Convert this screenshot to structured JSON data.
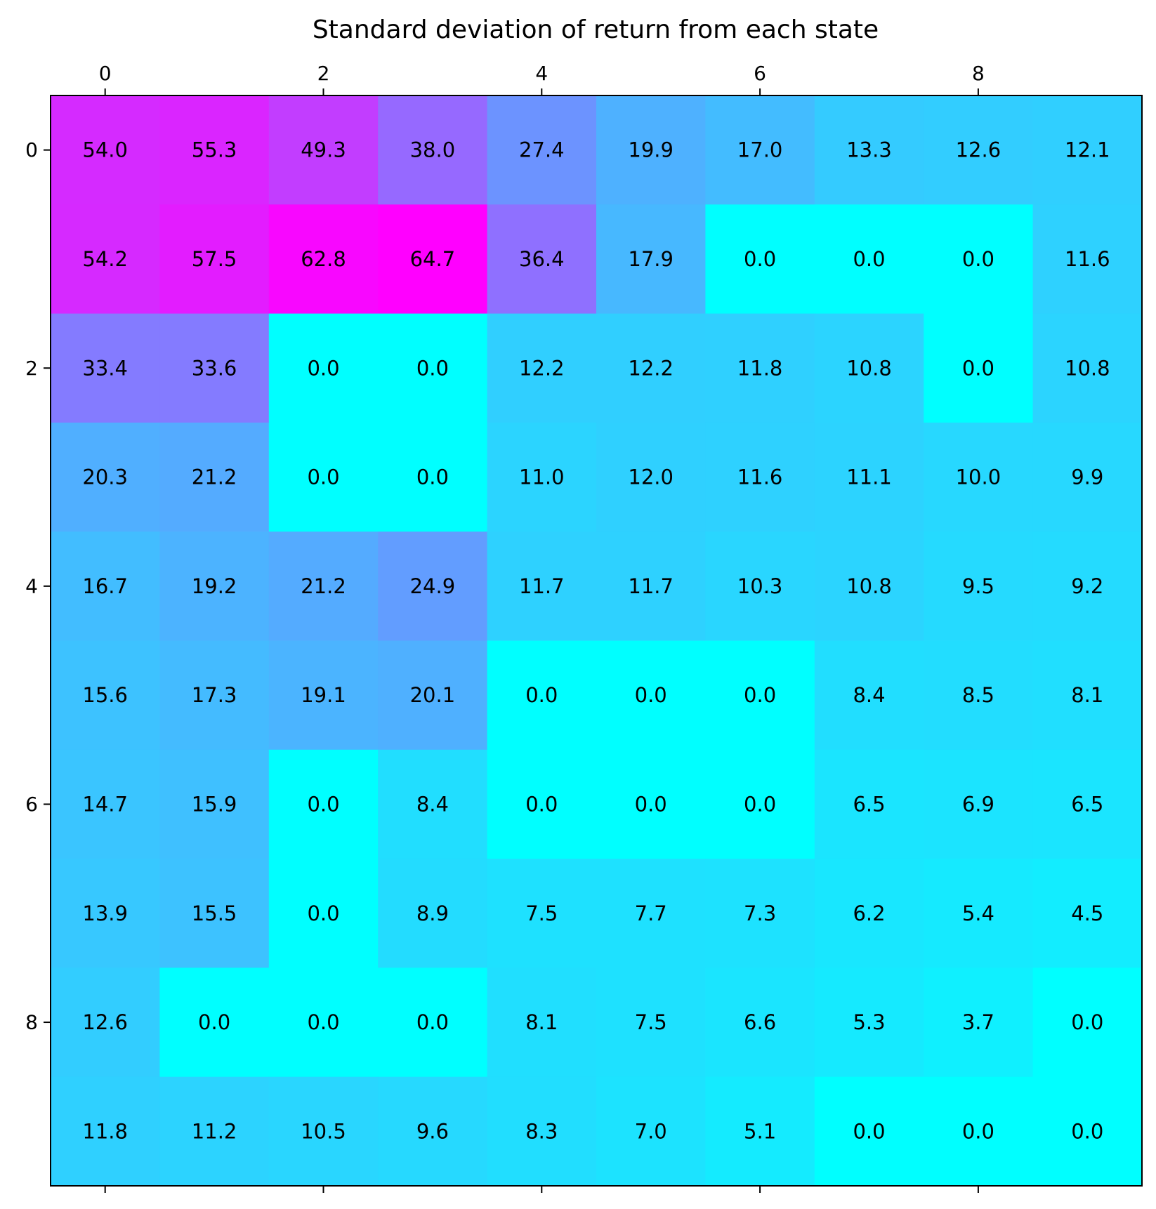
{
  "chart_data": {
    "type": "heatmap",
    "title": "Standard deviation of return from each state",
    "xlabel": "",
    "ylabel": "",
    "colormap": "cool",
    "color_range": [
      0.0,
      64.7
    ],
    "color_low": "#00ffff",
    "color_high": "#ff00ff",
    "x_axis_position": "top",
    "x_ticks": [
      0,
      2,
      4,
      6,
      8
    ],
    "y_ticks": [
      0,
      2,
      4,
      6,
      8
    ],
    "x_tick_labels": [
      "0",
      "2",
      "4",
      "6",
      "8"
    ],
    "y_tick_labels": [
      "0",
      "2",
      "4",
      "6",
      "8"
    ],
    "grid": false,
    "values": [
      [
        54.0,
        55.3,
        49.3,
        38.0,
        27.4,
        19.9,
        17.0,
        13.3,
        12.6,
        12.1
      ],
      [
        54.2,
        57.5,
        62.8,
        64.7,
        36.4,
        17.9,
        0.0,
        0.0,
        0.0,
        11.6
      ],
      [
        33.4,
        33.6,
        0.0,
        0.0,
        12.2,
        12.2,
        11.8,
        10.8,
        0.0,
        10.8
      ],
      [
        20.3,
        21.2,
        0.0,
        0.0,
        11.0,
        12.0,
        11.6,
        11.1,
        10.0,
        9.9
      ],
      [
        16.7,
        19.2,
        21.2,
        24.9,
        11.7,
        11.7,
        10.3,
        10.8,
        9.5,
        9.2
      ],
      [
        15.6,
        17.3,
        19.1,
        20.1,
        0.0,
        0.0,
        0.0,
        8.4,
        8.5,
        8.1
      ],
      [
        14.7,
        15.9,
        0.0,
        8.4,
        0.0,
        0.0,
        0.0,
        6.5,
        6.9,
        6.5
      ],
      [
        13.9,
        15.5,
        0.0,
        8.9,
        7.5,
        7.7,
        7.3,
        6.2,
        5.4,
        4.5
      ],
      [
        12.6,
        0.0,
        0.0,
        0.0,
        8.1,
        7.5,
        6.6,
        5.3,
        3.7,
        0.0
      ],
      [
        11.8,
        11.2,
        10.5,
        9.6,
        8.3,
        7.0,
        5.1,
        0.0,
        0.0,
        0.0
      ]
    ]
  }
}
